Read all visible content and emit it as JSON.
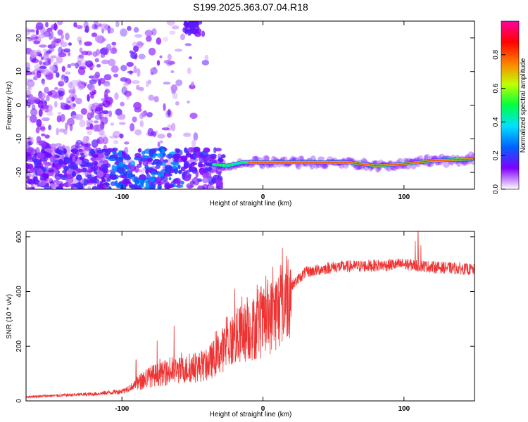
{
  "title": "S199.2025.363.07.04.R18",
  "chart_data": [
    {
      "type": "heatmap",
      "xlabel": "Height of straight line (km)",
      "ylabel": "Frequency (Hz)",
      "xlim": [
        -168,
        150
      ],
      "ylim": [
        -25,
        25
      ],
      "xticks": [
        -100,
        0,
        100
      ],
      "yticks": [
        -20,
        -10,
        0,
        10,
        20
      ],
      "colorbar": {
        "label": "Normalized spectral amplitude",
        "ticks": [
          "0.0",
          "0.2",
          "0.4",
          "0.6",
          "0.8"
        ],
        "range": [
          0,
          1
        ],
        "colors": [
          "#ffffff",
          "#8000ff",
          "#0060ff",
          "#00e0ff",
          "#00ff40",
          "#c0ff00",
          "#ff8000",
          "#ff0000",
          "#ff00a0"
        ]
      },
      "ridge": [
        {
          "x": -40,
          "y": -17.5
        },
        {
          "x": -25,
          "y": -18
        },
        {
          "x": -15,
          "y": -17
        },
        {
          "x": 0,
          "y": -17
        },
        {
          "x": 20,
          "y": -17
        },
        {
          "x": 60,
          "y": -17
        },
        {
          "x": 80,
          "y": -18
        },
        {
          "x": 100,
          "y": -17.5
        },
        {
          "x": 120,
          "y": -16.5
        },
        {
          "x": 150,
          "y": -16
        }
      ]
    },
    {
      "type": "line",
      "xlabel": "Height of straight line (km)",
      "ylabel": "SNR (10 * v/v)",
      "xlim": [
        -168,
        150
      ],
      "ylim": [
        0,
        620
      ],
      "xticks": [
        -100,
        0,
        100
      ],
      "yticks": [
        0,
        200,
        400,
        600
      ],
      "color": "#ee3333",
      "series": [
        {
          "envelope": [
            {
              "x": -168,
              "y": 15
            },
            {
              "x": -120,
              "y": 25
            },
            {
              "x": -100,
              "y": 35
            },
            {
              "x": -90,
              "y": 60
            },
            {
              "x": -80,
              "y": 90
            },
            {
              "x": -60,
              "y": 110
            },
            {
              "x": -40,
              "y": 130
            },
            {
              "x": -30,
              "y": 180
            },
            {
              "x": -20,
              "y": 230
            },
            {
              "x": -10,
              "y": 260
            },
            {
              "x": 0,
              "y": 280
            },
            {
              "x": 10,
              "y": 330
            },
            {
              "x": 20,
              "y": 420
            },
            {
              "x": 30,
              "y": 470
            },
            {
              "x": 50,
              "y": 490
            },
            {
              "x": 80,
              "y": 495
            },
            {
              "x": 100,
              "y": 500
            },
            {
              "x": 120,
              "y": 490
            },
            {
              "x": 150,
              "y": 480
            }
          ],
          "peaks": [
            {
              "x": 110,
              "y": 620
            },
            {
              "x": 108,
              "y": 585
            },
            {
              "x": 112,
              "y": 570
            },
            {
              "x": -20,
              "y": 410
            },
            {
              "x": 7,
              "y": 490
            },
            {
              "x": -63,
              "y": 275
            },
            {
              "x": -75,
              "y": 220
            },
            {
              "x": -90,
              "y": 150
            }
          ]
        }
      ]
    }
  ]
}
